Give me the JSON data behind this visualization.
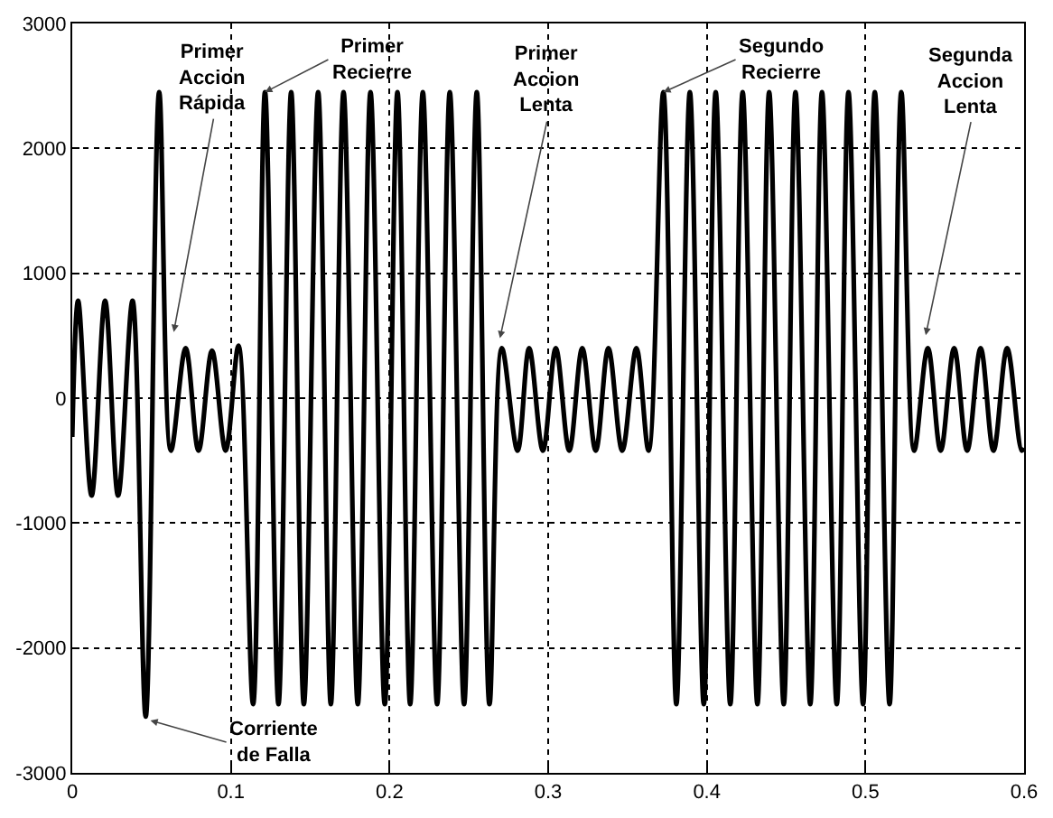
{
  "chart_data": {
    "type": "line",
    "x": [
      0,
      0.0037,
      0.0122,
      0.0207,
      0.0289,
      0.038,
      0.0463,
      0.0548,
      0.0622,
      0.0715,
      0.0796,
      0.0881,
      0.0967,
      0.1048,
      0.114,
      0.1215,
      0.13,
      0.138,
      0.146,
      0.155,
      0.163,
      0.171,
      0.18,
      0.188,
      0.197,
      0.205,
      0.213,
      0.221,
      0.23,
      0.238,
      0.247,
      0.255,
      0.263,
      0.2708,
      0.2807,
      0.288,
      0.2967,
      0.3048,
      0.3133,
      0.3215,
      0.33,
      0.338,
      0.3467,
      0.3556,
      0.3633,
      0.3726,
      0.3808,
      0.3893,
      0.3981,
      0.4056,
      0.4148,
      0.4226,
      0.4319,
      0.4393,
      0.4485,
      0.4559,
      0.4652,
      0.4726,
      0.4819,
      0.4893,
      0.4985,
      0.5059,
      0.5152,
      0.5226,
      0.5307,
      0.5393,
      0.5474,
      0.5559,
      0.5641,
      0.5726,
      0.5807,
      0.5893,
      0.5985,
      0.6
    ],
    "series": [
      {
        "color": "#000000",
        "values": [
          -310,
          780,
          -780,
          780,
          -780,
          780,
          -2550,
          2450,
          -420,
          400,
          -420,
          380,
          -420,
          420,
          -2450,
          2450,
          -2450,
          2450,
          -2450,
          2450,
          -2450,
          2450,
          -2450,
          2450,
          -2450,
          2450,
          -2450,
          2450,
          -2450,
          2450,
          -2450,
          2450,
          -2450,
          400,
          -420,
          400,
          -420,
          400,
          -420,
          400,
          -420,
          400,
          -420,
          400,
          -420,
          2450,
          -2450,
          2450,
          -2450,
          2450,
          -2450,
          2450,
          -2450,
          2450,
          -2450,
          2450,
          -2450,
          2450,
          -2450,
          2450,
          -2450,
          2450,
          -2450,
          2450,
          -420,
          400,
          -420,
          400,
          -420,
          400,
          -420,
          400,
          -420,
          -400
        ]
      }
    ],
    "xlim": [
      0,
      0.6
    ],
    "xticks": [
      0,
      0.1,
      0.2,
      0.3,
      0.4,
      0.5,
      0.6
    ],
    "ylim": [
      -3000,
      3000
    ],
    "yticks": [
      -3000,
      -2000,
      -1000,
      0,
      1000,
      2000,
      3000
    ],
    "grid": true,
    "marker": "none",
    "line_style": "solid",
    "annotations": [
      {
        "text": "Primer\nAccion\nRápida",
        "x": 0.064,
        "y": 530
      },
      {
        "text": "Primer\nRecierre",
        "x": 0.1215,
        "y": 2450
      },
      {
        "text": "Primer\nAccion\nLenta",
        "x": 0.2696,
        "y": 480
      },
      {
        "text": "Segundo\nRecierre",
        "x": 0.3726,
        "y": 2450
      },
      {
        "text": "Segunda\nAccion\nLenta",
        "x": 0.538,
        "y": 505
      },
      {
        "text": "Corriente\nde Falla",
        "x": 0.0493,
        "y": -2580
      }
    ]
  }
}
